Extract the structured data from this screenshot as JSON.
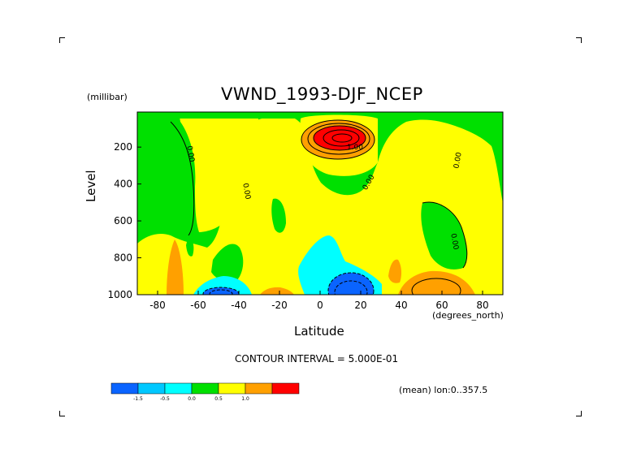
{
  "chart_data": {
    "type": "heatmap",
    "title": "VWND_1993-DJF_NCEP",
    "xlabel": "Latitude",
    "ylabel": "Level",
    "x_unit": "(degrees_north)",
    "y_unit": "(millibar)",
    "xlim": [
      -90,
      90
    ],
    "ylim": [
      1000,
      10
    ],
    "x_ticks": [
      -80,
      -60,
      -40,
      -20,
      0,
      20,
      40,
      60,
      80
    ],
    "x_tick_labels": [
      "-80",
      "-60",
      "-40",
      "-20",
      "0",
      "20",
      "40",
      "60",
      "80"
    ],
    "y_ticks": [
      200,
      400,
      600,
      800,
      1000
    ],
    "y_tick_labels": [
      "200",
      "400",
      "600",
      "800",
      "1000"
    ],
    "contour_interval": "CONTOUR INTERVAL = 5.000E-01",
    "averaging_note": "(mean) lon:0..357.5",
    "legend": {
      "bins": [
        {
          "color": "#0a64ff",
          "label": "-1.5"
        },
        {
          "color": "#00c8ff",
          "label": "-0.5"
        },
        {
          "color": "#00ffff",
          "label": "0.0"
        },
        {
          "color": "#00e000",
          "label": "0.5"
        },
        {
          "color": "#ffff00",
          "label": "1.0"
        },
        {
          "color": "#ffa000",
          "label": ""
        },
        {
          "color": "#ff0000",
          "label": ""
        }
      ]
    },
    "contour_labels": [
      "0.00",
      "0.00",
      "0.00",
      "0.00",
      "0.00",
      "1.00"
    ]
  },
  "colors": {
    "green": "#00e000",
    "yellow": "#ffff00",
    "orange": "#ffa000",
    "red": "#ff0000",
    "cyan": "#00ffff",
    "blue": "#0a64ff"
  }
}
